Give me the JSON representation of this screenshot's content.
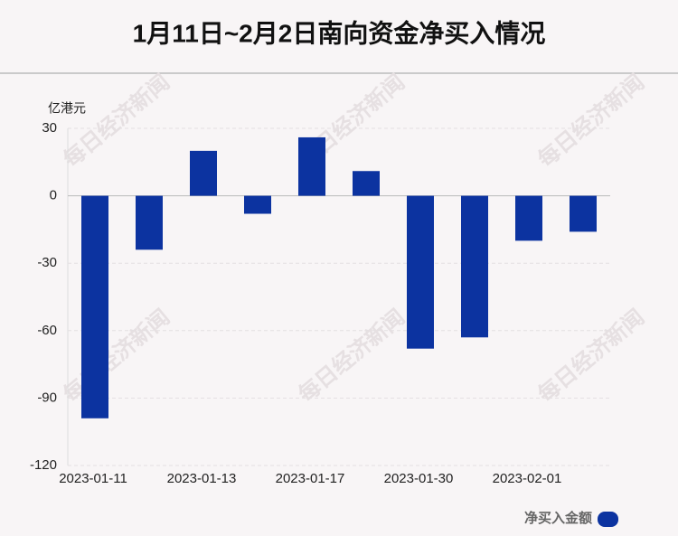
{
  "chart_data": {
    "type": "bar",
    "title": "1月11日~2月2日南向资金净买入情况",
    "y_label": "亿港元",
    "watermark": "每日经济新闻",
    "categories": [
      "2023-01-11",
      null,
      "2023-01-13",
      null,
      "2023-01-17",
      null,
      "2023-01-30",
      null,
      "2023-02-01",
      null
    ],
    "series": [
      {
        "name": "净买入金额",
        "color": "#0c33a0",
        "values": [
          -99,
          -24,
          20,
          -8,
          26,
          11,
          -68,
          -63,
          -20,
          -16
        ]
      }
    ],
    "ylim": [
      -120,
      30
    ],
    "yticks": [
      -120,
      -90,
      -60,
      -30,
      0,
      30
    ],
    "grid": true,
    "legend": "bottom-right"
  }
}
